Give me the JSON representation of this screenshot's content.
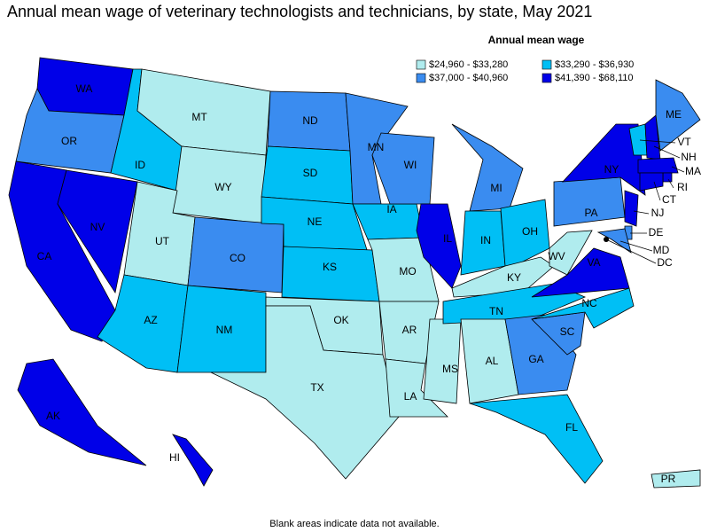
{
  "title": "Annual mean wage of veterinary technologists and technicians, by state, May 2021",
  "legend": {
    "title": "Annual mean wage",
    "items": [
      {
        "label": "$24,960 - $33,280",
        "color": "#b0ecee"
      },
      {
        "label": "$33,290 - $36,930",
        "color": "#00bff5"
      },
      {
        "label": "$37,000 - $40,960",
        "color": "#3a8cf0"
      },
      {
        "label": "$41,390 - $68,110",
        "color": "#0000e8"
      }
    ]
  },
  "states": [
    {
      "label": "WA",
      "bin": 3
    },
    {
      "label": "OR",
      "bin": 2
    },
    {
      "label": "CA",
      "bin": 3
    },
    {
      "label": "NV",
      "bin": 3
    },
    {
      "label": "ID",
      "bin": 1
    },
    {
      "label": "MT",
      "bin": 0
    },
    {
      "label": "WY",
      "bin": 0
    },
    {
      "label": "UT",
      "bin": 0
    },
    {
      "label": "CO",
      "bin": 2
    },
    {
      "label": "AZ",
      "bin": 1
    },
    {
      "label": "NM",
      "bin": 1
    },
    {
      "label": "ND",
      "bin": 2
    },
    {
      "label": "SD",
      "bin": 1
    },
    {
      "label": "NE",
      "bin": 1
    },
    {
      "label": "KS",
      "bin": 1
    },
    {
      "label": "OK",
      "bin": 0
    },
    {
      "label": "TX",
      "bin": 0
    },
    {
      "label": "MN",
      "bin": 2
    },
    {
      "label": "IA",
      "bin": 1
    },
    {
      "label": "MO",
      "bin": 0
    },
    {
      "label": "AR",
      "bin": 0
    },
    {
      "label": "LA",
      "bin": 0
    },
    {
      "label": "WI",
      "bin": 2
    },
    {
      "label": "IL",
      "bin": 3
    },
    {
      "label": "MS",
      "bin": 0
    },
    {
      "label": "MI",
      "bin": 2
    },
    {
      "label": "IN",
      "bin": 1
    },
    {
      "label": "OH",
      "bin": 1
    },
    {
      "label": "KY",
      "bin": 0
    },
    {
      "label": "TN",
      "bin": 1
    },
    {
      "label": "AL",
      "bin": 0
    },
    {
      "label": "GA",
      "bin": 2
    },
    {
      "label": "FL",
      "bin": 1
    },
    {
      "label": "SC",
      "bin": 2
    },
    {
      "label": "NC",
      "bin": 1
    },
    {
      "label": "VA",
      "bin": 3
    },
    {
      "label": "WV",
      "bin": 0
    },
    {
      "label": "PA",
      "bin": 2
    },
    {
      "label": "NY",
      "bin": 3
    },
    {
      "label": "VT",
      "bin": 1
    },
    {
      "label": "NH",
      "bin": 3
    },
    {
      "label": "ME",
      "bin": 2
    },
    {
      "label": "MA",
      "bin": 3
    },
    {
      "label": "RI",
      "bin": 3
    },
    {
      "label": "CT",
      "bin": 3
    },
    {
      "label": "NJ",
      "bin": 3
    },
    {
      "label": "DE",
      "bin": 2
    },
    {
      "label": "MD",
      "bin": 2
    },
    {
      "label": "DC",
      "bin": 3
    },
    {
      "label": "AK",
      "bin": 3
    },
    {
      "label": "HI",
      "bin": 3
    },
    {
      "label": "PR",
      "bin": 0
    }
  ],
  "footnote": "Blank areas indicate data not available."
}
